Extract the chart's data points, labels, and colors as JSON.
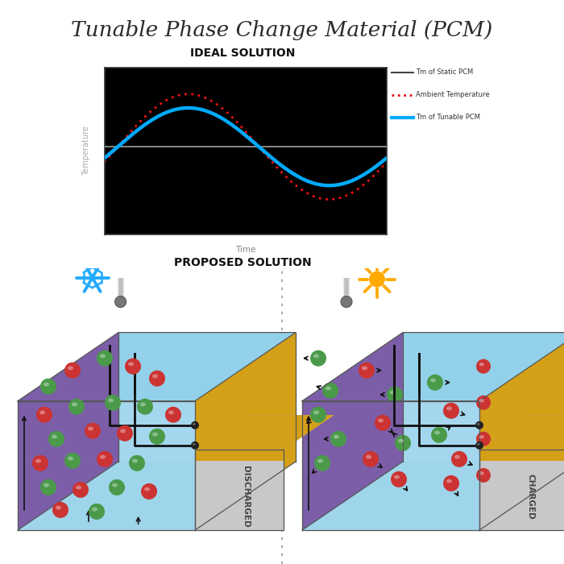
{
  "title": "Tunable Phase Change Material (PCM)",
  "subtitle1": "IDEAL SOLUTION",
  "subtitle2": "PROPOSED SOLUTION",
  "legend_items": [
    {
      "label": "Tm of Static PCM",
      "color": "#444444",
      "style": "solid",
      "lw": 1.5
    },
    {
      "label": "Ambient Temperature",
      "color": "#ee1111",
      "style": "dotted",
      "lw": 2.0
    },
    {
      "label": "Tm of Tunable PCM",
      "color": "#00aaff",
      "style": "solid",
      "lw": 3.0
    }
  ],
  "graph_bg": "#000000",
  "snowflake_color": "#22aaff",
  "sun_color": "#ffaa00",
  "purple_wall": "#7B5EA7",
  "blue_front": "#87CEEB",
  "blue_top": "#5BB8D4",
  "blue_right": "#6ac0d8",
  "gold_wall": "#D4A017",
  "gray_box_face": "#C8C8C8",
  "gray_box_top": "#B0B0B0",
  "green_ball": "#4a9a4a",
  "red_ball": "#cc3333",
  "electrode_color": "#111111",
  "center_dot_color": "#999999"
}
